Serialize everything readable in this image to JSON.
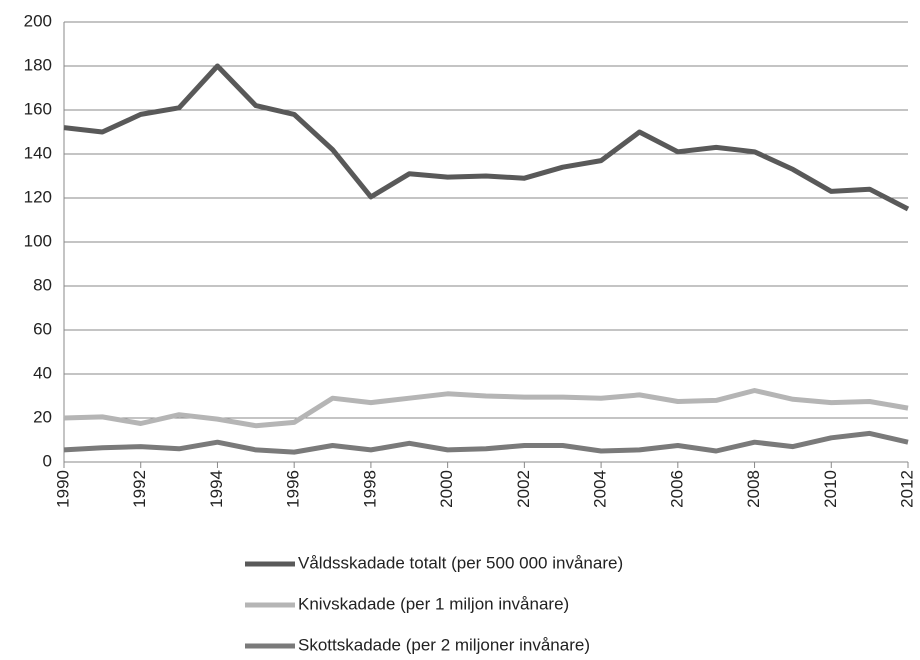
{
  "chart_data": {
    "type": "line",
    "x": [
      1990,
      1991,
      1992,
      1993,
      1994,
      1995,
      1996,
      1997,
      1998,
      1999,
      2000,
      2001,
      2002,
      2003,
      2004,
      2005,
      2006,
      2007,
      2008,
      2009,
      2010,
      2011,
      2012
    ],
    "series": [
      {
        "name": "Våldsskadade totalt (per 500 000 invånare)",
        "color": "#595959",
        "values": [
          152,
          150,
          158,
          161,
          180,
          162,
          158,
          142,
          120.5,
          131,
          129.5,
          130,
          129,
          134,
          137,
          150,
          141,
          143,
          141,
          133,
          123,
          124,
          115
        ]
      },
      {
        "name": "Knivskadade (per  1 miljon invånare)",
        "color": "#b5b5b5",
        "values": [
          20,
          20.5,
          17.5,
          21.5,
          19.5,
          16.5,
          18,
          29,
          27,
          29,
          31,
          30,
          29.5,
          29.5,
          29,
          30.5,
          27.5,
          28,
          32.5,
          28.5,
          27,
          27.5,
          24.5
        ]
      },
      {
        "name": "Skottskadade (per 2 miljoner invånare)",
        "color": "#7a7a7a",
        "values": [
          5.5,
          6.5,
          7,
          6,
          9,
          5.5,
          4.5,
          7.5,
          5.5,
          8.5,
          5.5,
          6,
          7.5,
          7.5,
          5,
          5.5,
          7.5,
          5,
          9,
          7,
          11,
          13,
          9
        ]
      }
    ],
    "xlim": [
      1990,
      2012
    ],
    "xticks": [
      1990,
      1992,
      1994,
      1996,
      1998,
      2000,
      2002,
      2004,
      2006,
      2008,
      2010,
      2012
    ],
    "ylim": [
      0,
      200
    ],
    "yticks": [
      0,
      20,
      40,
      60,
      80,
      100,
      120,
      140,
      160,
      180,
      200
    ],
    "grid": true,
    "legend": "bottom"
  }
}
